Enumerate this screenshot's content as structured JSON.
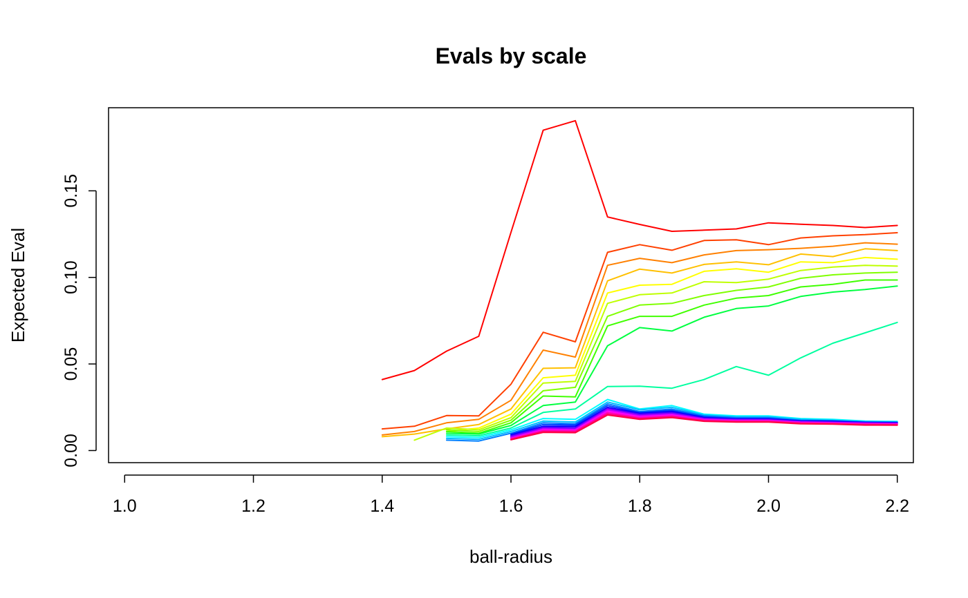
{
  "chart_data": {
    "type": "line",
    "title": "Evals by scale",
    "xlabel": "ball-radius",
    "ylabel": "Expected Eval",
    "xlim": [
      0.975,
      2.225
    ],
    "ylim": [
      -0.007,
      0.198
    ],
    "xticks": [
      1.0,
      1.2,
      1.4,
      1.6,
      1.8,
      2.0,
      2.2
    ],
    "xtick_labels": [
      "1.0",
      "1.2",
      "1.4",
      "1.6",
      "1.8",
      "2.0",
      "2.2"
    ],
    "yticks": [
      0.0,
      0.05,
      0.1,
      0.15
    ],
    "ytick_labels": [
      "0.00",
      "0.05",
      "0.10",
      "0.15"
    ],
    "grid": false,
    "x": [
      1.4,
      1.45,
      1.5,
      1.55,
      1.6,
      1.65,
      1.7,
      1.75,
      1.8,
      1.85,
      1.9,
      1.95,
      2.0,
      2.05,
      2.1,
      2.15,
      2.2
    ],
    "series": [
      {
        "color": "#FF0000",
        "values": [
          0.041,
          0.0462,
          0.0574,
          0.066,
          0.126,
          0.185,
          0.1905,
          0.1349,
          0.1306,
          0.1266,
          0.1273,
          0.128,
          0.1315,
          0.1307,
          0.13,
          0.1288,
          0.13
        ]
      },
      {
        "color": "#FF4000",
        "values": [
          0.0125,
          0.014,
          0.0202,
          0.02,
          0.0383,
          0.0683,
          0.0628,
          0.1145,
          0.1189,
          0.1157,
          0.1213,
          0.1217,
          0.1189,
          0.1228,
          0.124,
          0.1247,
          0.1258
        ]
      },
      {
        "color": "#FF8000",
        "values": [
          0.009,
          0.011,
          0.016,
          0.018,
          0.029,
          0.058,
          0.054,
          0.107,
          0.111,
          0.1085,
          0.113,
          0.1155,
          0.116,
          0.1168,
          0.118,
          0.12,
          0.1192
        ]
      },
      {
        "color": "#FFC000",
        "values": [
          0.008,
          0.0095,
          0.0125,
          0.015,
          0.024,
          0.0475,
          0.0478,
          0.098,
          0.1048,
          0.1025,
          0.1075,
          0.109,
          0.1073,
          0.1135,
          0.112,
          0.1165,
          0.1155
        ]
      },
      {
        "color": "#FFFF00",
        "values": [
          null,
          null,
          0.011,
          0.013,
          0.021,
          0.042,
          0.0435,
          0.091,
          0.0955,
          0.096,
          0.1035,
          0.105,
          0.103,
          0.109,
          0.1085,
          0.1115,
          0.1105
        ]
      },
      {
        "color": "#BFFF00",
        "values": [
          null,
          0.006,
          0.013,
          0.012,
          0.019,
          0.039,
          0.04,
          0.085,
          0.09,
          0.091,
          0.0975,
          0.097,
          0.099,
          0.104,
          0.106,
          0.107,
          0.1065
        ]
      },
      {
        "color": "#80FF00",
        "values": [
          null,
          null,
          0.012,
          0.011,
          0.0175,
          0.0345,
          0.0365,
          0.0775,
          0.084,
          0.085,
          0.0895,
          0.0925,
          0.0945,
          0.0995,
          0.1015,
          0.1025,
          0.103
        ]
      },
      {
        "color": "#40FF00",
        "values": [
          null,
          null,
          0.011,
          0.01,
          0.016,
          0.0315,
          0.031,
          0.072,
          0.0775,
          0.0775,
          0.084,
          0.088,
          0.0895,
          0.0945,
          0.096,
          0.0985,
          0.0985
        ]
      },
      {
        "color": "#00FF40",
        "values": [
          null,
          null,
          0.01,
          0.0095,
          0.0145,
          0.026,
          0.028,
          0.0605,
          0.071,
          0.069,
          0.077,
          0.082,
          0.0835,
          0.089,
          0.0915,
          0.093,
          0.095
        ]
      },
      {
        "color": "#00FF9F",
        "values": [
          null,
          null,
          0.009,
          0.0085,
          0.013,
          0.022,
          0.024,
          0.037,
          0.0372,
          0.036,
          0.041,
          0.0485,
          0.0435,
          0.0535,
          0.062,
          0.068,
          0.074
        ]
      },
      {
        "color": "#00FFFF",
        "values": [
          null,
          null,
          0.008,
          0.0075,
          0.012,
          0.0185,
          0.018,
          0.0295,
          0.024,
          0.026,
          0.021,
          0.02,
          0.02,
          0.0185,
          0.018,
          0.017,
          0.0168
        ]
      },
      {
        "color": "#00BFFF",
        "values": [
          null,
          null,
          0.007,
          0.0065,
          0.011,
          0.017,
          0.0165,
          0.028,
          0.0235,
          0.025,
          0.0205,
          0.0195,
          0.0195,
          0.018,
          0.0175,
          0.0168,
          0.0165
        ]
      },
      {
        "color": "#0080FF",
        "values": [
          null,
          null,
          0.006,
          0.0055,
          0.01,
          0.016,
          0.0155,
          0.027,
          0.0225,
          0.024,
          0.02,
          0.019,
          0.019,
          0.0175,
          0.0172,
          0.0165,
          0.0163
        ]
      },
      {
        "color": "#0040FF",
        "values": [
          null,
          null,
          null,
          null,
          0.0095,
          0.015,
          0.0148,
          0.026,
          0.022,
          0.0232,
          0.0195,
          0.0185,
          0.0185,
          0.0172,
          0.017,
          0.0163,
          0.0162
        ]
      },
      {
        "color": "#0000FF",
        "values": [
          null,
          null,
          null,
          null,
          0.009,
          0.014,
          0.014,
          0.025,
          0.0215,
          0.0225,
          0.019,
          0.0182,
          0.0182,
          0.017,
          0.0168,
          0.0162,
          0.016
        ]
      },
      {
        "color": "#4000FF",
        "values": [
          null,
          null,
          null,
          null,
          0.0085,
          0.0135,
          0.0132,
          0.0245,
          0.021,
          0.022,
          0.0187,
          0.018,
          0.018,
          0.0168,
          0.0165,
          0.016,
          0.0158
        ]
      },
      {
        "color": "#8000FF",
        "values": [
          null,
          null,
          null,
          null,
          0.008,
          0.013,
          0.0127,
          0.024,
          0.0205,
          0.0215,
          0.0184,
          0.0178,
          0.0177,
          0.0166,
          0.0163,
          0.0158,
          0.0156
        ]
      },
      {
        "color": "#BF00FF",
        "values": [
          null,
          null,
          null,
          null,
          0.0075,
          0.0125,
          0.0122,
          0.0235,
          0.02,
          0.021,
          0.0181,
          0.0175,
          0.0175,
          0.0164,
          0.0161,
          0.0156,
          0.0155
        ]
      },
      {
        "color": "#FF00FF",
        "values": [
          null,
          null,
          null,
          null,
          0.007,
          0.012,
          0.0118,
          0.0228,
          0.0195,
          0.0205,
          0.0178,
          0.0172,
          0.0172,
          0.0162,
          0.0159,
          0.0154,
          0.0153
        ]
      },
      {
        "color": "#FF00BF",
        "values": [
          null,
          null,
          null,
          null,
          0.0068,
          0.0115,
          0.0113,
          0.022,
          0.019,
          0.02,
          0.0175,
          0.017,
          0.017,
          0.016,
          0.0157,
          0.0152,
          0.0151
        ]
      },
      {
        "color": "#FF0080",
        "values": [
          null,
          null,
          null,
          null,
          0.0065,
          0.011,
          0.0108,
          0.0212,
          0.0185,
          0.0195,
          0.0172,
          0.0167,
          0.0167,
          0.0157,
          0.0155,
          0.015,
          0.0149
        ]
      },
      {
        "color": "#FF0040",
        "values": [
          null,
          null,
          null,
          null,
          0.0062,
          0.0105,
          0.0103,
          0.0205,
          0.018,
          0.019,
          0.0169,
          0.0164,
          0.0164,
          0.0154,
          0.0152,
          0.0147,
          0.0146
        ]
      }
    ]
  }
}
